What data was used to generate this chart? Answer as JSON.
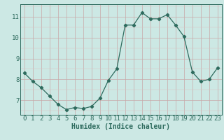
{
  "x": [
    0,
    1,
    2,
    3,
    4,
    5,
    6,
    7,
    8,
    9,
    10,
    11,
    12,
    13,
    14,
    15,
    16,
    17,
    18,
    19,
    20,
    21,
    22,
    23
  ],
  "y": [
    8.3,
    7.9,
    7.6,
    7.2,
    6.8,
    6.55,
    6.65,
    6.6,
    6.7,
    7.1,
    7.95,
    8.5,
    10.6,
    10.6,
    11.2,
    10.9,
    10.9,
    11.1,
    10.6,
    10.05,
    8.35,
    7.9,
    8.0,
    8.55
  ],
  "line_color": "#2e6b5e",
  "marker": "D",
  "markersize": 2.2,
  "linewidth": 0.9,
  "bg_color": "#cce8e4",
  "grid_color_major": "#c8a8a8",
  "grid_color_minor": "#dcc0c0",
  "xlabel": "Humidex (Indice chaleur)",
  "xlabel_fontsize": 7,
  "yticks": [
    7,
    8,
    9,
    10,
    11
  ],
  "xtick_labels": [
    "0",
    "1",
    "2",
    "3",
    "4",
    "5",
    "6",
    "7",
    "8",
    "9",
    "10",
    "11",
    "12",
    "13",
    "14",
    "15",
    "16",
    "17",
    "18",
    "19",
    "20",
    "21",
    "22",
    "23"
  ],
  "ylim": [
    6.3,
    11.6
  ],
  "xlim": [
    -0.5,
    23.5
  ],
  "tick_fontsize": 6.5,
  "tick_color": "#2e6b5e",
  "label_color": "#2e6b5e",
  "spine_color": "#2e6b5e"
}
